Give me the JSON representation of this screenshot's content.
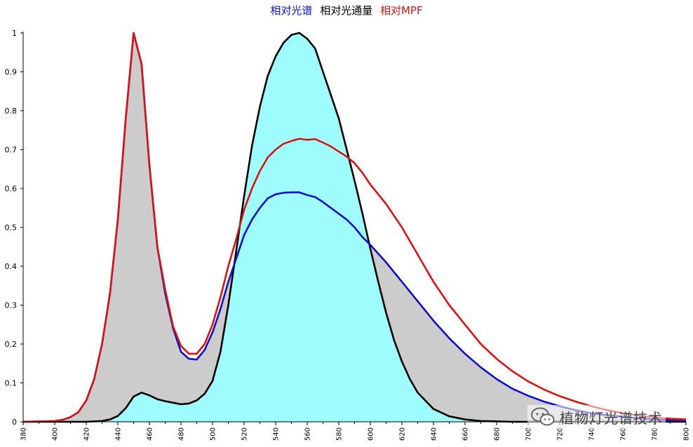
{
  "legend": {
    "items": [
      {
        "label": "相对光谱",
        "color": "#1010cc"
      },
      {
        "label": "相对光通量",
        "color": "#000000"
      },
      {
        "label": "相对MPF",
        "color": "#dd1111"
      }
    ]
  },
  "watermark": {
    "text": "植物灯光谱技术",
    "icon": "wechat-icon"
  },
  "colors": {
    "fill_under_spectrum": "#cccccc",
    "fill_under_flux": "#9ffcfc"
  },
  "chart_data": {
    "type": "line",
    "xlim": [
      380,
      800
    ],
    "ylim": [
      0,
      1
    ],
    "x_ticks": [
      380,
      400,
      420,
      440,
      460,
      480,
      500,
      520,
      540,
      560,
      580,
      600,
      620,
      640,
      660,
      680,
      700,
      720,
      740,
      760,
      780,
      800
    ],
    "y_ticks": [
      0,
      0.1,
      0.2,
      0.3,
      0.4,
      0.5,
      0.6,
      0.7,
      0.8,
      0.9,
      1
    ],
    "y_tick_labels": [
      "0",
      "0.1",
      "0.2",
      "0.3",
      "0.4",
      "0.5",
      "0.6",
      "0.7",
      "0.8",
      "0.9",
      "1"
    ],
    "series": [
      {
        "name": "相对光谱",
        "color": "#1010cc",
        "x": [
          380,
          400,
          405,
          410,
          415,
          420,
          425,
          430,
          435,
          440,
          445,
          450,
          455,
          460,
          465,
          470,
          475,
          480,
          485,
          490,
          495,
          500,
          505,
          510,
          515,
          520,
          525,
          530,
          535,
          540,
          545,
          550,
          555,
          560,
          565,
          570,
          575,
          580,
          585,
          590,
          595,
          600,
          610,
          620,
          630,
          640,
          650,
          660,
          670,
          680,
          690,
          700,
          710,
          720,
          730,
          740,
          750,
          760,
          770,
          780,
          790,
          800
        ],
        "y": [
          0,
          0.002,
          0.005,
          0.012,
          0.025,
          0.055,
          0.11,
          0.2,
          0.33,
          0.52,
          0.78,
          1.0,
          0.92,
          0.66,
          0.45,
          0.33,
          0.24,
          0.18,
          0.162,
          0.16,
          0.185,
          0.23,
          0.29,
          0.36,
          0.42,
          0.48,
          0.52,
          0.55,
          0.575,
          0.585,
          0.589,
          0.59,
          0.59,
          0.583,
          0.578,
          0.565,
          0.55,
          0.535,
          0.52,
          0.5,
          0.475,
          0.455,
          0.41,
          0.36,
          0.31,
          0.26,
          0.215,
          0.175,
          0.14,
          0.11,
          0.085,
          0.067,
          0.052,
          0.04,
          0.03,
          0.022,
          0.017,
          0.013,
          0.009,
          0.006,
          0.004,
          0.003
        ]
      },
      {
        "name": "相对光通量",
        "color": "#000000",
        "x": [
          380,
          420,
          430,
          435,
          440,
          445,
          450,
          455,
          460,
          465,
          470,
          475,
          480,
          485,
          490,
          495,
          500,
          505,
          510,
          515,
          520,
          525,
          530,
          535,
          540,
          545,
          550,
          555,
          560,
          565,
          570,
          575,
          580,
          585,
          590,
          595,
          600,
          605,
          610,
          615,
          620,
          625,
          630,
          640,
          650,
          660,
          670,
          680,
          690,
          700,
          720,
          800
        ],
        "y": [
          0,
          0,
          0.002,
          0.006,
          0.015,
          0.035,
          0.065,
          0.075,
          0.068,
          0.058,
          0.053,
          0.049,
          0.045,
          0.047,
          0.055,
          0.072,
          0.105,
          0.18,
          0.3,
          0.44,
          0.58,
          0.71,
          0.81,
          0.89,
          0.94,
          0.975,
          0.995,
          1.0,
          0.985,
          0.96,
          0.9,
          0.84,
          0.78,
          0.7,
          0.62,
          0.535,
          0.445,
          0.36,
          0.28,
          0.21,
          0.155,
          0.11,
          0.075,
          0.033,
          0.014,
          0.006,
          0.002,
          0.001,
          0,
          0,
          0,
          0
        ]
      },
      {
        "name": "相对MPF",
        "color": "#dd1111",
        "x": [
          380,
          400,
          405,
          410,
          415,
          420,
          425,
          430,
          435,
          440,
          445,
          450,
          455,
          460,
          465,
          470,
          475,
          480,
          485,
          490,
          495,
          500,
          505,
          510,
          515,
          520,
          525,
          530,
          535,
          540,
          545,
          550,
          555,
          560,
          565,
          570,
          575,
          580,
          585,
          590,
          595,
          600,
          610,
          620,
          630,
          640,
          650,
          660,
          670,
          680,
          690,
          700,
          710,
          720,
          730,
          740,
          750,
          760,
          770,
          780,
          790,
          800
        ],
        "y": [
          0,
          0.002,
          0.005,
          0.012,
          0.025,
          0.055,
          0.11,
          0.2,
          0.33,
          0.52,
          0.78,
          1.0,
          0.92,
          0.66,
          0.45,
          0.34,
          0.245,
          0.195,
          0.175,
          0.175,
          0.2,
          0.25,
          0.32,
          0.4,
          0.47,
          0.545,
          0.6,
          0.645,
          0.68,
          0.7,
          0.715,
          0.722,
          0.728,
          0.725,
          0.727,
          0.718,
          0.708,
          0.695,
          0.682,
          0.665,
          0.64,
          0.61,
          0.56,
          0.5,
          0.43,
          0.36,
          0.3,
          0.25,
          0.2,
          0.162,
          0.13,
          0.104,
          0.083,
          0.066,
          0.052,
          0.04,
          0.03,
          0.022,
          0.016,
          0.011,
          0.008,
          0.006
        ]
      }
    ]
  }
}
